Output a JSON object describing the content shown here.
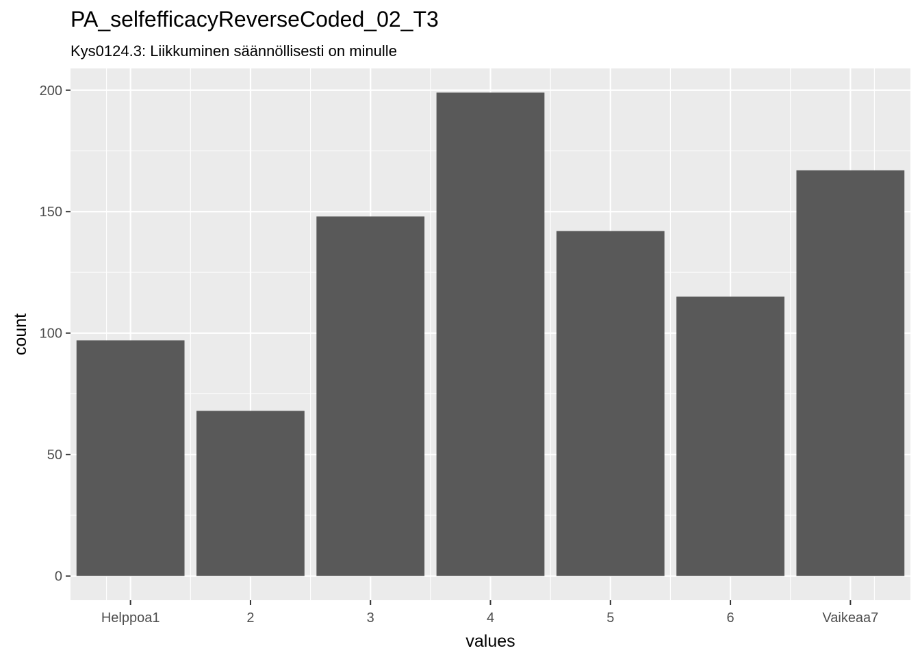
{
  "chart_data": {
    "type": "bar",
    "title": "PA_selfefficacyReverseCoded_02_T3",
    "subtitle": "Kys0124.3: Liikkuminen säännöllisesti on minulle",
    "xlabel": "values",
    "ylabel": "count",
    "categories": [
      "Helppoa1",
      "2",
      "3",
      "4",
      "5",
      "6",
      "Vaikeaa7"
    ],
    "values": [
      97,
      68,
      148,
      199,
      142,
      115,
      167
    ],
    "ylim": [
      -9.95,
      208.95
    ],
    "yticks": [
      0,
      50,
      100,
      150,
      200
    ],
    "grid": true,
    "colors": {
      "bar": "#595959",
      "panel": "#ebebeb",
      "grid": "#ffffff"
    }
  }
}
